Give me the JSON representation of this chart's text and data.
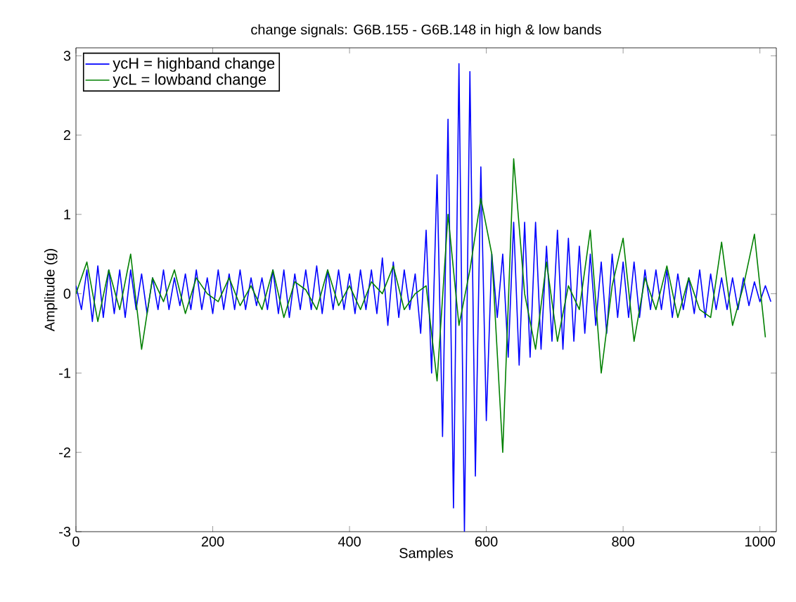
{
  "chart_data": {
    "type": "line",
    "title": "change signals: G6B.155 - G6B.148 in high & low bands",
    "xlabel": "Samples",
    "ylabel": "Amplitude (g)",
    "xlim": [
      0,
      1024
    ],
    "ylim": [
      -3,
      3.1
    ],
    "xticks": [
      0,
      200,
      400,
      600,
      800,
      1000
    ],
    "yticks": [
      -3,
      -2,
      -1,
      0,
      1,
      2,
      3
    ],
    "legend": "top left",
    "grid": false,
    "marker": "none",
    "line_style": "solid",
    "series": [
      {
        "name": "ycH = highband change",
        "color": "#0000ff",
        "x": [
          0,
          8,
          16,
          24,
          32,
          40,
          48,
          56,
          64,
          72,
          80,
          88,
          96,
          104,
          112,
          120,
          128,
          136,
          144,
          152,
          160,
          168,
          176,
          184,
          192,
          200,
          208,
          216,
          224,
          232,
          240,
          248,
          256,
          264,
          272,
          280,
          288,
          296,
          304,
          312,
          320,
          328,
          336,
          344,
          352,
          360,
          368,
          376,
          384,
          392,
          400,
          408,
          416,
          424,
          432,
          440,
          448,
          456,
          464,
          472,
          480,
          488,
          496,
          504,
          512,
          520,
          528,
          536,
          544,
          552,
          560,
          568,
          576,
          584,
          592,
          600,
          608,
          616,
          624,
          632,
          640,
          648,
          656,
          664,
          672,
          680,
          688,
          696,
          704,
          712,
          720,
          728,
          736,
          744,
          752,
          760,
          768,
          776,
          784,
          792,
          800,
          808,
          816,
          824,
          832,
          840,
          848,
          856,
          864,
          872,
          880,
          888,
          896,
          904,
          912,
          920,
          928,
          936,
          944,
          952,
          960,
          968,
          976,
          984,
          992,
          1000,
          1008,
          1016
        ],
        "values": [
          0.1,
          -0.2,
          0.3,
          -0.35,
          0.35,
          -0.3,
          0.3,
          -0.25,
          0.3,
          -0.3,
          0.3,
          -0.2,
          0.25,
          -0.25,
          0.2,
          -0.2,
          0.3,
          -0.2,
          0.2,
          -0.15,
          0.25,
          -0.2,
          0.3,
          -0.2,
          0.2,
          -0.25,
          0.3,
          -0.2,
          0.25,
          -0.2,
          0.3,
          -0.2,
          0.2,
          -0.15,
          0.2,
          -0.2,
          0.3,
          -0.25,
          0.3,
          -0.3,
          0.25,
          -0.2,
          0.3,
          -0.2,
          0.35,
          -0.25,
          0.3,
          -0.2,
          0.3,
          -0.2,
          0.25,
          -0.25,
          0.3,
          -0.2,
          0.3,
          -0.25,
          0.45,
          -0.4,
          0.4,
          -0.3,
          0.3,
          -0.2,
          0.25,
          -0.5,
          0.8,
          -1.0,
          1.5,
          -1.8,
          2.2,
          -2.7,
          2.9,
          -3.0,
          2.8,
          -2.3,
          1.6,
          -1.6,
          0.5,
          -0.3,
          0.5,
          -0.8,
          0.9,
          -0.9,
          0.9,
          -0.8,
          0.9,
          -0.7,
          0.6,
          -0.6,
          0.8,
          -0.7,
          0.7,
          -0.6,
          0.6,
          -0.5,
          0.5,
          -0.4,
          0.4,
          -0.5,
          0.5,
          -0.3,
          0.4,
          -0.3,
          0.4,
          -0.3,
          0.3,
          -0.2,
          0.3,
          -0.2,
          0.3,
          -0.3,
          0.25,
          -0.2,
          0.2,
          -0.25,
          0.3,
          -0.3,
          0.25,
          -0.2,
          0.2,
          -0.2,
          0.2,
          -0.2,
          0.2,
          -0.15,
          0.15,
          -0.1,
          0.1,
          -0.1
        ]
      },
      {
        "name": "ycL = lowband change",
        "color": "#008000",
        "x": [
          0,
          16,
          32,
          48,
          64,
          80,
          96,
          112,
          128,
          144,
          160,
          176,
          192,
          208,
          224,
          240,
          256,
          272,
          288,
          304,
          320,
          336,
          352,
          368,
          384,
          400,
          416,
          432,
          448,
          464,
          480,
          496,
          512,
          528,
          544,
          560,
          576,
          592,
          608,
          624,
          640,
          656,
          672,
          688,
          704,
          720,
          736,
          752,
          768,
          784,
          800,
          816,
          832,
          848,
          864,
          880,
          896,
          912,
          928,
          944,
          960,
          976,
          992,
          1008
        ],
        "values": [
          0.0,
          0.4,
          -0.35,
          0.3,
          -0.2,
          0.5,
          -0.7,
          0.2,
          -0.1,
          0.3,
          -0.25,
          0.2,
          0.0,
          -0.1,
          0.2,
          -0.15,
          0.1,
          -0.2,
          0.3,
          -0.3,
          0.15,
          0.05,
          -0.2,
          0.3,
          -0.15,
          0.1,
          -0.2,
          0.15,
          0.0,
          0.35,
          -0.2,
          0.0,
          0.1,
          -1.1,
          1.0,
          -0.4,
          0.3,
          1.2,
          0.5,
          -2.0,
          1.7,
          0.0,
          -0.7,
          0.4,
          -0.6,
          0.1,
          -0.2,
          0.8,
          -1.0,
          0.1,
          0.7,
          -0.6,
          0.2,
          -0.2,
          0.35,
          -0.3,
          0.2,
          -0.2,
          -0.3,
          0.65,
          -0.4,
          0.1,
          0.75,
          -0.55
        ]
      }
    ]
  }
}
